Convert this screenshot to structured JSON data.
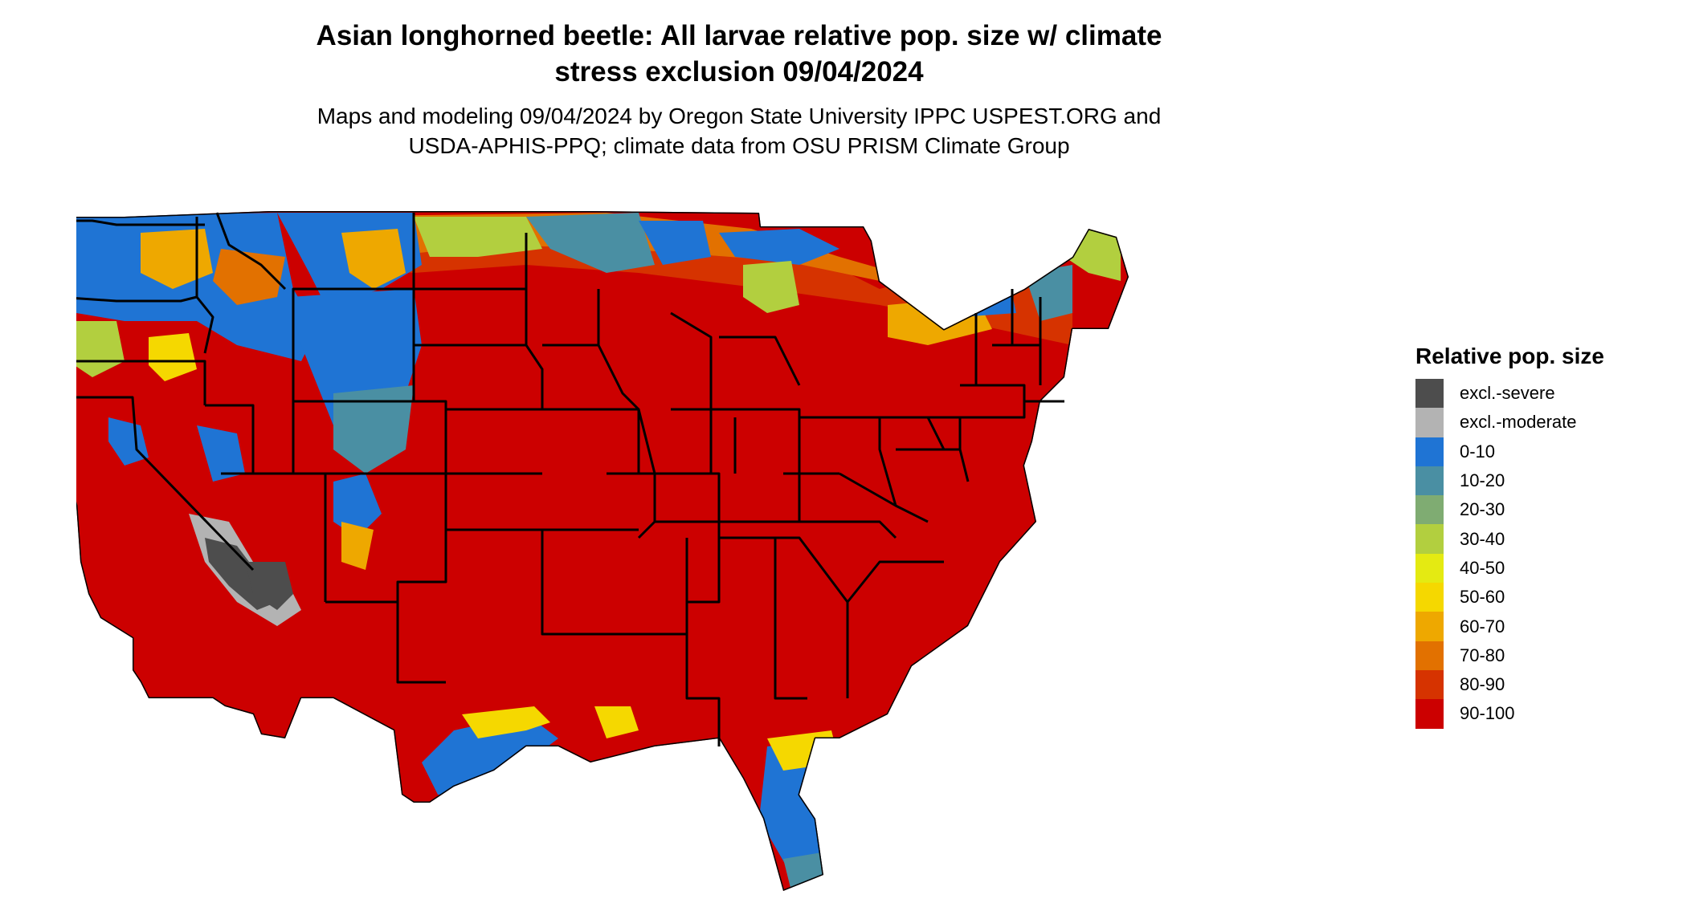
{
  "title_line1": "Asian longhorned beetle: All larvae relative pop. size w/ climate",
  "title_line2": "stress exclusion 09/04/2024",
  "subtitle_line1": "Maps and modeling 09/04/2024 by Oregon State University IPPC USPEST.ORG and",
  "subtitle_line2": "USDA-APHIS-PPQ; climate data from OSU PRISM Climate Group",
  "legend": {
    "title": "Relative pop. size",
    "items": [
      {
        "label": "excl.-severe",
        "color": "#4d4d4d"
      },
      {
        "label": "excl.-moderate",
        "color": "#b3b3b3"
      },
      {
        "label": "0-10",
        "color": "#1f74d4"
      },
      {
        "label": "10-20",
        "color": "#4a8fa3"
      },
      {
        "label": "20-30",
        "color": "#7fac72"
      },
      {
        "label": "30-40",
        "color": "#b2cf3f"
      },
      {
        "label": "40-50",
        "color": "#e4ea12"
      },
      {
        "label": "50-60",
        "color": "#f5d800"
      },
      {
        "label": "60-70",
        "color": "#eea800"
      },
      {
        "label": "70-80",
        "color": "#e27100"
      },
      {
        "label": "80-90",
        "color": "#d63300"
      },
      {
        "label": "90-100",
        "color": "#cc0000"
      }
    ]
  }
}
